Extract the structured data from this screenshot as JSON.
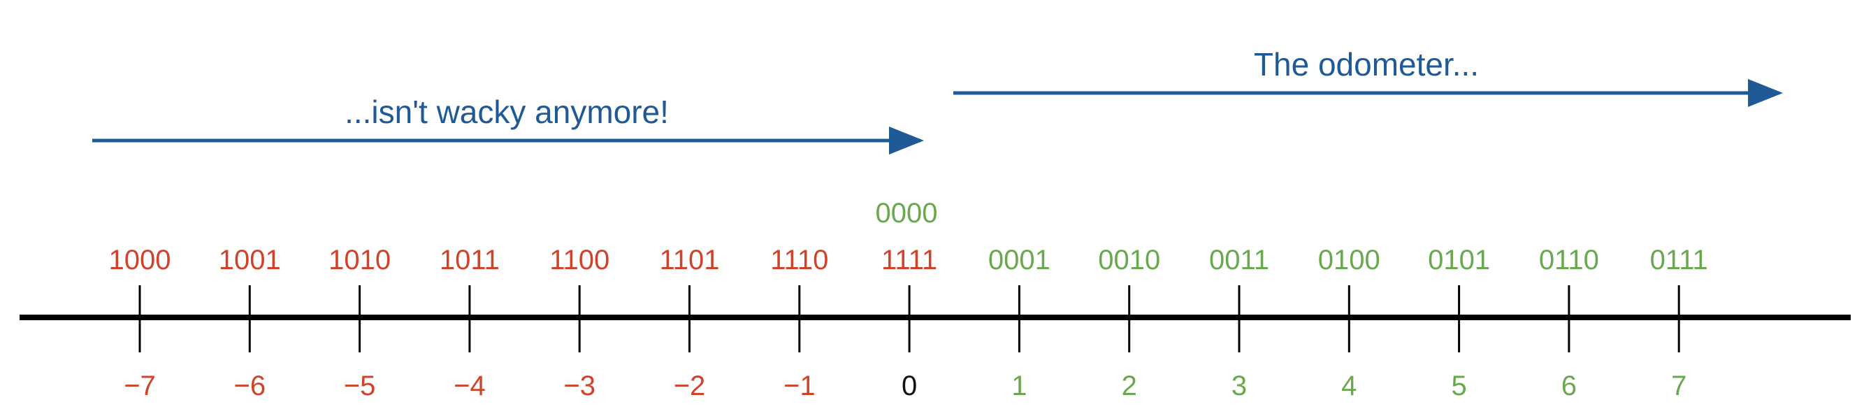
{
  "colors": {
    "negative": "#d0432b",
    "positive": "#6aa84f",
    "zero": "#111111",
    "arrow": "#1f5a96",
    "axis": "#000000"
  },
  "captions": {
    "top_right": "The odometer...",
    "left": "...isn't wacky anymore!"
  },
  "zero_extra_binary": "0000",
  "ticks": [
    {
      "binary": "1000",
      "decimal": "−7",
      "sign": "negative"
    },
    {
      "binary": "1001",
      "decimal": "−6",
      "sign": "negative"
    },
    {
      "binary": "1010",
      "decimal": "−5",
      "sign": "negative"
    },
    {
      "binary": "1011",
      "decimal": "−4",
      "sign": "negative"
    },
    {
      "binary": "1100",
      "decimal": "−3",
      "sign": "negative"
    },
    {
      "binary": "1101",
      "decimal": "−2",
      "sign": "negative"
    },
    {
      "binary": "1110",
      "decimal": "−1",
      "sign": "negative"
    },
    {
      "binary": "1111",
      "decimal": "0",
      "sign": "zero"
    },
    {
      "binary": "0001",
      "decimal": "1",
      "sign": "positive"
    },
    {
      "binary": "0010",
      "decimal": "2",
      "sign": "positive"
    },
    {
      "binary": "0011",
      "decimal": "3",
      "sign": "positive"
    },
    {
      "binary": "0100",
      "decimal": "4",
      "sign": "positive"
    },
    {
      "binary": "0101",
      "decimal": "5",
      "sign": "positive"
    },
    {
      "binary": "0110",
      "decimal": "6",
      "sign": "positive"
    },
    {
      "binary": "0111",
      "decimal": "7",
      "sign": "positive"
    }
  ]
}
